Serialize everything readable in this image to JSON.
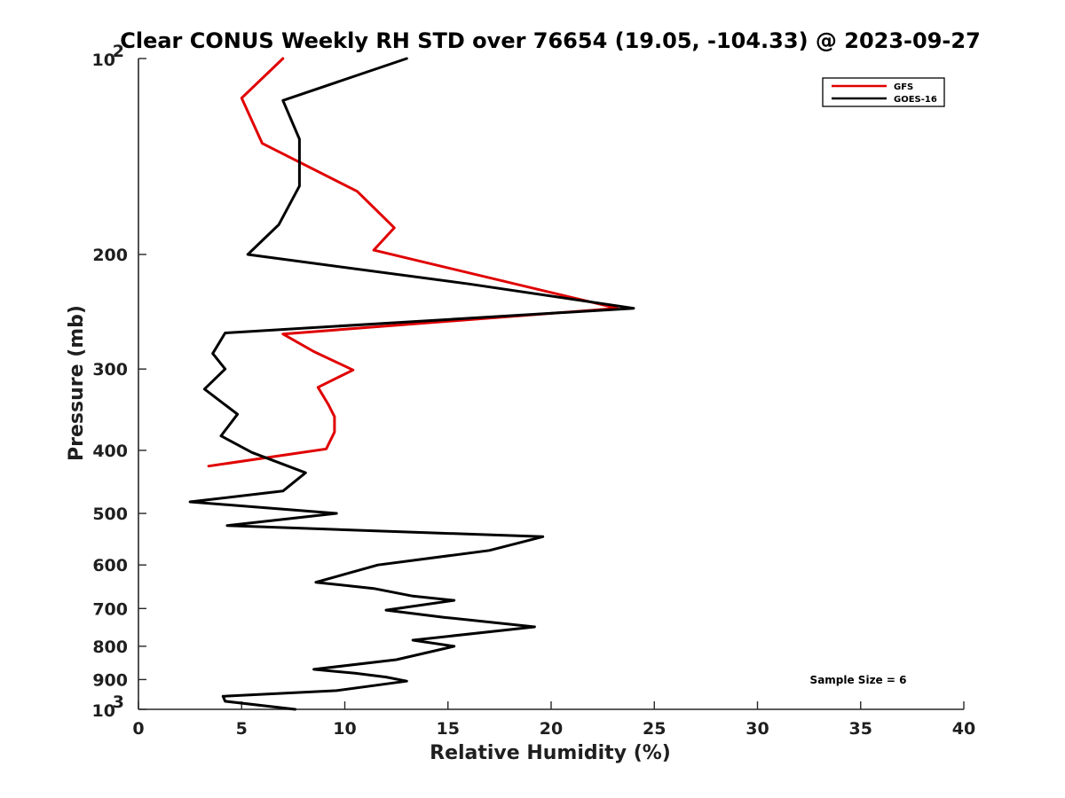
{
  "chart_data": {
    "type": "line",
    "title": "Clear CONUS Weekly RH STD over 76654 (19.05, -104.33) @ 2023-09-27",
    "xlabel": "Relative Humidity (%)",
    "ylabel": "Pressure (mb)",
    "xlim": [
      0,
      40
    ],
    "ylim": [
      100,
      1000
    ],
    "yscale": "log",
    "y_reversed": true,
    "x_ticks": [
      0,
      5,
      10,
      15,
      20,
      25,
      30,
      35,
      40
    ],
    "x_tick_labels": [
      "0",
      "5",
      "10",
      "15",
      "20",
      "25",
      "30",
      "35",
      "40"
    ],
    "y_ticks": [
      100,
      200,
      300,
      400,
      500,
      600,
      700,
      800,
      900,
      1000
    ],
    "y_tick_labels": [
      "",
      "200",
      "300",
      "400",
      "500",
      "600",
      "700",
      "800",
      "900",
      ""
    ],
    "y_power_labels": [
      {
        "value": 100,
        "base": "10",
        "exponent": "2"
      },
      {
        "value": 1000,
        "base": "10",
        "exponent": "3"
      }
    ],
    "legend_position": "top-right",
    "series": [
      {
        "name": "GFS",
        "color": "#e00000",
        "points": [
          [
            7.0,
            100
          ],
          [
            5.0,
            115
          ],
          [
            6.0,
            135
          ],
          [
            10.6,
            160
          ],
          [
            12.4,
            182
          ],
          [
            11.4,
            197
          ],
          [
            23.2,
            242
          ],
          [
            7.0,
            265
          ],
          [
            8.5,
            282
          ],
          [
            10.4,
            301
          ],
          [
            8.7,
            320
          ],
          [
            9.2,
            340
          ],
          [
            9.5,
            355
          ],
          [
            9.5,
            375
          ],
          [
            9.1,
            398
          ],
          [
            3.4,
            423
          ],
          [
            3.4,
            423
          ],
          [
            3.4,
            423
          ],
          [
            3.4,
            423
          ],
          [
            3.4,
            423
          ],
          [
            3.4,
            423
          ],
          [
            3.4,
            423
          ],
          [
            3.4,
            423
          ],
          [
            3.4,
            423
          ],
          [
            3.4,
            423
          ],
          [
            3.4,
            423
          ],
          [
            3.4,
            423
          ],
          [
            3.4,
            423
          ],
          [
            3.4,
            423
          ],
          [
            3.4,
            423
          ],
          [
            3.4,
            423
          ],
          [
            3.4,
            423
          ],
          [
            3.4,
            423
          ],
          [
            3.4,
            423
          ],
          [
            3.4,
            423
          ],
          [
            3.4,
            423
          ],
          [
            3.4,
            423
          ],
          [
            3.4,
            423
          ],
          [
            3.4,
            423
          ],
          [
            3.4,
            423
          ],
          [
            3.4,
            423
          ],
          [
            3.4,
            423
          ],
          [
            3.4,
            423
          ],
          [
            3.4,
            423
          ],
          [
            3.4,
            423
          ],
          [
            3.4,
            423
          ],
          [
            3.4,
            423
          ],
          [
            3.4,
            423
          ],
          [
            3.4,
            423
          ],
          [
            3.4,
            423
          ],
          [
            3.4,
            423
          ],
          [
            3.4,
            423
          ],
          [
            3.4,
            423
          ],
          [
            3.4,
            423
          ],
          [
            3.4,
            423
          ],
          [
            3.4,
            423
          ],
          [
            3.4,
            423
          ],
          [
            3.4,
            423
          ],
          [
            3.4,
            423
          ],
          [
            3.4,
            423
          ],
          [
            3.4,
            423
          ],
          [
            3.4,
            423
          ],
          [
            3.4,
            423
          ],
          [
            3.4,
            423
          ],
          [
            3.4,
            423
          ],
          [
            3.4,
            423
          ]
        ]
      },
      {
        "name": "GOES-16",
        "color": "#000000",
        "points": [
          [
            13.0,
            100
          ],
          [
            7.0,
            116
          ],
          [
            7.8,
            133
          ],
          [
            7.8,
            157
          ],
          [
            6.8,
            180
          ],
          [
            5.3,
            200
          ],
          [
            16.0,
            222
          ],
          [
            24.0,
            242
          ],
          [
            4.2,
            264
          ],
          [
            3.6,
            284
          ],
          [
            4.2,
            300
          ],
          [
            3.2,
            322
          ],
          [
            4.8,
            352
          ],
          [
            4.0,
            380
          ],
          [
            5.5,
            403
          ],
          [
            8.1,
            433
          ],
          [
            7.0,
            462
          ],
          [
            2.5,
            480
          ],
          [
            9.6,
            500
          ],
          [
            4.3,
            522
          ],
          [
            19.6,
            543
          ],
          [
            17.0,
            570
          ],
          [
            11.6,
            600
          ],
          [
            8.6,
            638
          ],
          [
            11.4,
            652
          ],
          [
            13.3,
            670
          ],
          [
            15.3,
            680
          ],
          [
            12.0,
            704
          ],
          [
            14.8,
            722
          ],
          [
            19.2,
            747
          ],
          [
            13.3,
            783
          ],
          [
            15.3,
            800
          ],
          [
            12.5,
            839
          ],
          [
            8.5,
            868
          ],
          [
            10.5,
            880
          ],
          [
            12.0,
            892
          ],
          [
            13.0,
            905
          ],
          [
            9.6,
            936
          ],
          [
            4.1,
            955
          ],
          [
            4.2,
            972
          ],
          [
            7.6,
            1000
          ]
        ]
      }
    ],
    "annotation": "Sample Size = 6"
  }
}
